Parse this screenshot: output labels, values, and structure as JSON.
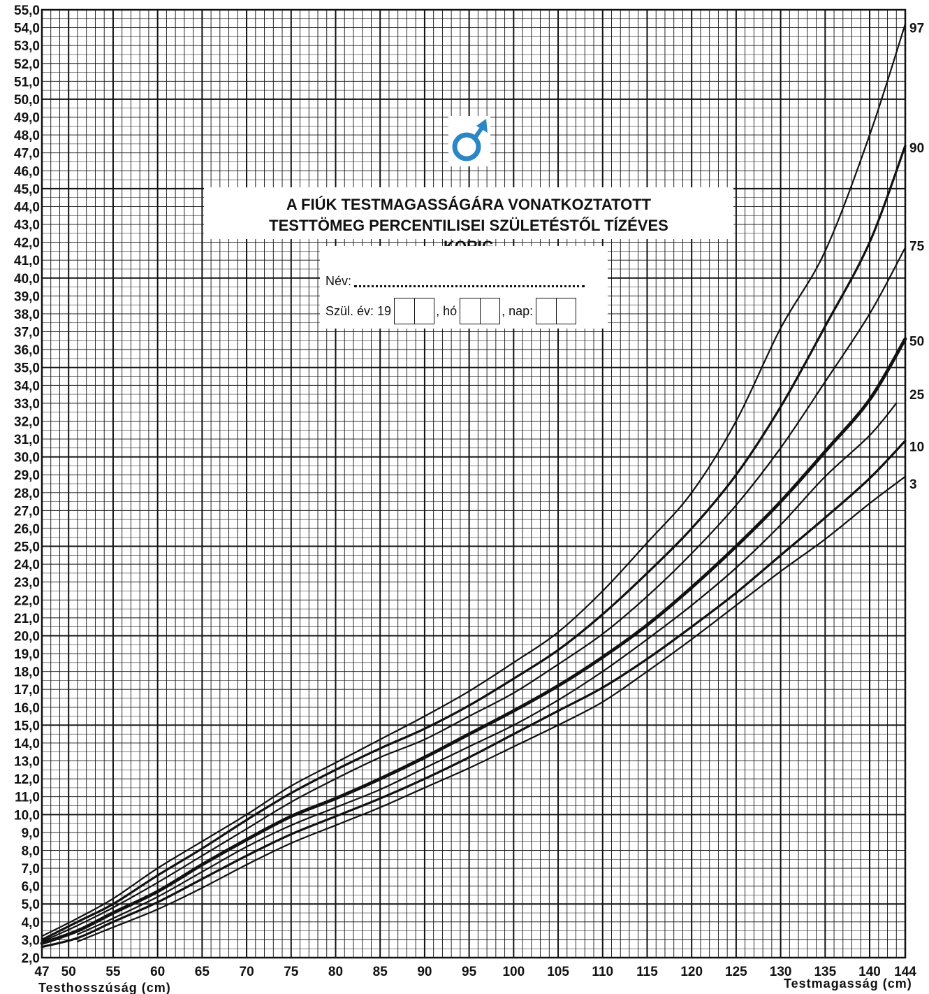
{
  "chart_data": {
    "type": "line",
    "title": "A FIÚK TESTMAGASSÁGÁRA VONATKOZTATOTT TESTTÖMEG PERCENTILISEI SZÜLETÉSTŐL TÍZÉVES KORIG",
    "xlabel_left": "Testhosszúság (cm)",
    "xlabel_right": "Testmagasság (cm)",
    "xlim": [
      47,
      144
    ],
    "ylim": [
      2.0,
      55.0
    ],
    "x_ticks": [
      "47",
      "50",
      "55",
      "60",
      "65",
      "70",
      "75",
      "80",
      "85",
      "90",
      "95",
      "100",
      "105",
      "110",
      "115",
      "120",
      "125",
      "130",
      "135",
      "140",
      "144"
    ],
    "y_ticks": [
      "2,0",
      "3,0",
      "4,0",
      "5,0",
      "6,0",
      "7,0",
      "8,0",
      "9,0",
      "10,0",
      "11,0",
      "12,0",
      "13,0",
      "14,0",
      "15,0",
      "16,0",
      "17,0",
      "18,0",
      "19,0",
      "20,0",
      "21,0",
      "22,0",
      "23,0",
      "24,0",
      "25,0",
      "26,0",
      "27,0",
      "28,0",
      "29,0",
      "30,0",
      "31,0",
      "32,0",
      "33,0",
      "34,0",
      "35,0",
      "36,0",
      "37,0",
      "38,0",
      "39,0",
      "40,0",
      "41,0",
      "42,0",
      "43,0",
      "44,0",
      "45,0",
      "46,0",
      "47,0",
      "48,0",
      "49,0",
      "50,0",
      "51,0",
      "52,0",
      "53,0",
      "54,0",
      "55,0"
    ],
    "grid": true,
    "series": [
      {
        "name": "97",
        "x": [
          47,
          51,
          55,
          60,
          65,
          70,
          75,
          80,
          85,
          90,
          95,
          100,
          105,
          110,
          115,
          120,
          125,
          130,
          135,
          140,
          144
        ],
        "y": [
          3.2,
          4.2,
          5.3,
          7.0,
          8.5,
          10.0,
          11.6,
          12.9,
          14.2,
          15.5,
          16.9,
          18.5,
          20.2,
          22.5,
          25.2,
          28.0,
          32.0,
          37.2,
          41.5,
          48.0,
          54.2
        ]
      },
      {
        "name": "90",
        "x": [
          47,
          51,
          55,
          60,
          65,
          70,
          75,
          80,
          85,
          90,
          95,
          100,
          105,
          110,
          115,
          120,
          125,
          130,
          135,
          140,
          144
        ],
        "y": [
          3.0,
          4.0,
          5.0,
          6.6,
          8.1,
          9.7,
          11.2,
          12.5,
          13.7,
          14.8,
          16.1,
          17.6,
          19.2,
          21.2,
          23.5,
          26.0,
          29.0,
          32.8,
          37.3,
          42.0,
          47.4
        ]
      },
      {
        "name": "75",
        "x": [
          47,
          51,
          55,
          60,
          65,
          70,
          75,
          80,
          85,
          90,
          95,
          100,
          105,
          110,
          115,
          120,
          125,
          130,
          135,
          140,
          144
        ],
        "y": [
          2.9,
          3.8,
          4.8,
          6.2,
          7.7,
          9.2,
          10.7,
          12.0,
          13.2,
          14.2,
          15.5,
          16.8,
          18.4,
          20.1,
          22.2,
          24.6,
          27.3,
          30.5,
          34.2,
          38.0,
          41.7
        ]
      },
      {
        "name": "50",
        "x": [
          47,
          51,
          55,
          60,
          65,
          70,
          75,
          80,
          85,
          90,
          95,
          100,
          105,
          110,
          115,
          120,
          125,
          130,
          135,
          140,
          144
        ],
        "y": [
          2.8,
          3.5,
          4.5,
          5.7,
          7.2,
          8.6,
          9.9,
          10.9,
          12.0,
          13.2,
          14.5,
          15.8,
          17.2,
          18.8,
          20.6,
          22.7,
          25.0,
          27.5,
          30.3,
          33.2,
          36.6
        ]
      },
      {
        "name": "25",
        "x": [
          51,
          55,
          60,
          65,
          70,
          75,
          80,
          85,
          90,
          95,
          100,
          105,
          110,
          115,
          120,
          125,
          130,
          135,
          140,
          143
        ],
        "y": [
          3.3,
          4.2,
          5.4,
          6.8,
          8.2,
          9.4,
          10.4,
          11.4,
          12.6,
          13.8,
          15.0,
          16.4,
          18.0,
          19.8,
          21.7,
          23.8,
          26.2,
          28.9,
          31.2,
          33.0
        ]
      },
      {
        "name": "10",
        "x": [
          47,
          51,
          55,
          60,
          65,
          70,
          75,
          80,
          85,
          90,
          95,
          100,
          105,
          110,
          115,
          120,
          125,
          130,
          135,
          140,
          144
        ],
        "y": [
          2.6,
          3.1,
          4.0,
          5.1,
          6.4,
          7.7,
          8.9,
          9.9,
          10.9,
          12.0,
          13.2,
          14.5,
          15.8,
          17.1,
          18.7,
          20.5,
          22.4,
          24.5,
          26.6,
          28.8,
          30.9
        ]
      },
      {
        "name": "3",
        "x": [
          51,
          55,
          60,
          65,
          70,
          75,
          80,
          85,
          90,
          95,
          100,
          105,
          110,
          115,
          120,
          125,
          130,
          135,
          140,
          144
        ],
        "y": [
          2.9,
          3.7,
          4.7,
          5.9,
          7.2,
          8.4,
          9.4,
          10.4,
          11.5,
          12.6,
          13.8,
          15.0,
          16.3,
          18.0,
          19.8,
          21.7,
          23.6,
          25.4,
          27.4,
          28.9
        ]
      }
    ]
  },
  "form": {
    "name_label": "Név:",
    "birth_label": "Szül. év: 19",
    "month_label": ", hó",
    "day_label": ", nap:"
  },
  "colors": {
    "male_symbol": "#2b86c5",
    "ink": "#111111"
  },
  "icon": "male-symbol-icon"
}
